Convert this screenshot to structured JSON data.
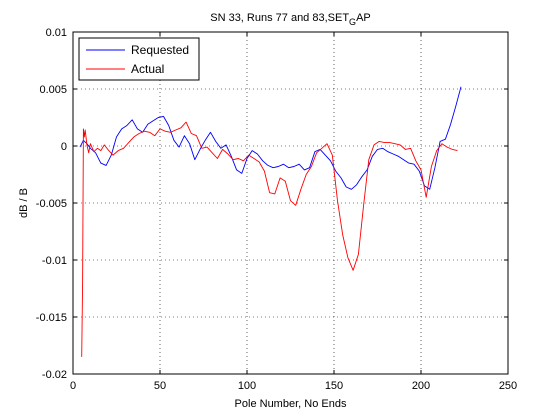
{
  "chart_data": {
    "type": "line",
    "title_main": "SN 33, Runs 77 and 83,SET",
    "title_sub": "G",
    "title_end": "AP",
    "xlabel": "Pole Number, No Ends",
    "ylabel": "dB / B",
    "xlim": [
      0,
      250
    ],
    "ylim": [
      -0.02,
      0.01
    ],
    "xticks": [
      0,
      50,
      100,
      150,
      200,
      250
    ],
    "xtick_labels": [
      "0",
      "50",
      "100",
      "150",
      "200",
      "250"
    ],
    "yticks": [
      0.01,
      0.005,
      0,
      -0.005,
      -0.01,
      -0.015,
      -0.02
    ],
    "ytick_labels": [
      "0.01",
      "0.005",
      "0",
      "-0.005",
      "-0.01",
      "-0.015",
      "-0.02"
    ],
    "grid": true,
    "legend_position": "top-left",
    "series": [
      {
        "name": "Requested",
        "color": "#0000ff",
        "x": [
          4,
          6,
          8,
          10,
          13,
          16,
          19,
          22,
          25,
          28,
          31,
          34,
          37,
          40,
          43,
          46,
          49,
          52,
          55,
          58,
          61,
          64,
          67,
          70,
          73,
          76,
          79,
          82,
          85,
          88,
          91,
          94,
          97,
          100,
          103,
          106,
          109,
          112,
          115,
          118,
          121,
          124,
          127,
          130,
          133,
          136,
          139,
          142,
          145,
          148,
          151,
          154,
          157,
          160,
          163,
          166,
          169,
          172,
          175,
          178,
          181,
          184,
          187,
          190,
          193,
          196,
          199,
          202,
          205,
          208,
          211,
          214,
          217,
          220,
          223
        ],
        "y": [
          -0.0001,
          0.0005,
          0.0002,
          -0.0002,
          -0.0006,
          -0.0015,
          -0.0017,
          -0.0008,
          0.0008,
          0.0015,
          0.0018,
          0.0023,
          0.0015,
          0.0012,
          0.0019,
          0.0022,
          0.0025,
          0.0026,
          0.0018,
          0.0005,
          -0.0001,
          0.0009,
          0.0002,
          -0.0012,
          -0.0003,
          0.0005,
          0.0012,
          0.0004,
          -0.0002,
          0.0001,
          -0.0009,
          -0.0021,
          -0.0024,
          -0.0011,
          -0.0004,
          -0.0007,
          -0.0013,
          -0.0017,
          -0.0019,
          -0.0018,
          -0.0016,
          -0.0019,
          -0.0018,
          -0.0016,
          -0.0021,
          -0.0019,
          -0.0005,
          -0.0003,
          -0.0008,
          -0.0013,
          -0.0022,
          -0.0028,
          -0.0036,
          -0.0038,
          -0.0034,
          -0.0027,
          -0.0021,
          -0.0009,
          -0.0003,
          -0.0002,
          -0.0005,
          -0.0007,
          -0.0009,
          -0.0012,
          -0.0015,
          -0.0016,
          -0.0022,
          -0.0035,
          -0.0038,
          -0.0019,
          0.0004,
          0.0006,
          0.0019,
          0.0035,
          0.0052
        ]
      },
      {
        "name": "Actual",
        "color": "#ff0000",
        "x": [
          5,
          5.5,
          6,
          6.5,
          7,
          8,
          9,
          10,
          12,
          14,
          16,
          18,
          20,
          23,
          26,
          29,
          32,
          35,
          38,
          41,
          44,
          47,
          50,
          53,
          56,
          59,
          62,
          65,
          68,
          71,
          74,
          77,
          80,
          83,
          86,
          89,
          92,
          95,
          98,
          101,
          104,
          107,
          110,
          113,
          116,
          119,
          122,
          125,
          128,
          131,
          134,
          137,
          140,
          143,
          146,
          149,
          152,
          155,
          158,
          161,
          164,
          167,
          170,
          173,
          176,
          179,
          182,
          185,
          188,
          191,
          194,
          197,
          200,
          203,
          206,
          209,
          212,
          215,
          218,
          221
        ],
        "y": [
          -0.0185,
          -0.012,
          0.0015,
          0.0008,
          0.0014,
          0.0001,
          -0.0006,
          0.0002,
          -0.0005,
          -0.0002,
          -0.0004,
          0.0001,
          -0.0003,
          -0.0008,
          -0.0004,
          -0.0002,
          0.0003,
          0.0008,
          0.0011,
          0.0013,
          0.0012,
          0.0009,
          0.0015,
          0.0013,
          0.0012,
          0.0014,
          0.0016,
          0.0021,
          0.0011,
          0.0009,
          -0.0002,
          -0.0001,
          -0.0006,
          -0.0011,
          -0.0003,
          -0.0007,
          -0.0012,
          -0.0011,
          -0.0013,
          -0.0008,
          -0.0011,
          -0.0014,
          -0.0022,
          -0.0041,
          -0.0042,
          -0.0028,
          -0.0031,
          -0.0048,
          -0.0052,
          -0.0038,
          -0.0025,
          -0.0018,
          -0.0006,
          -0.0002,
          0.0002,
          -0.0008,
          -0.0048,
          -0.0078,
          -0.0098,
          -0.0109,
          -0.0095,
          -0.0052,
          -0.0012,
          0.0001,
          0.0004,
          0.0003,
          0.0003,
          0.0002,
          0.0001,
          -0.0003,
          -0.0002,
          -0.0013,
          -0.0021,
          -0.0045,
          -0.0018,
          -0.0004,
          0.0002,
          -0.0001,
          -0.0003,
          -0.0004
        ]
      }
    ]
  }
}
